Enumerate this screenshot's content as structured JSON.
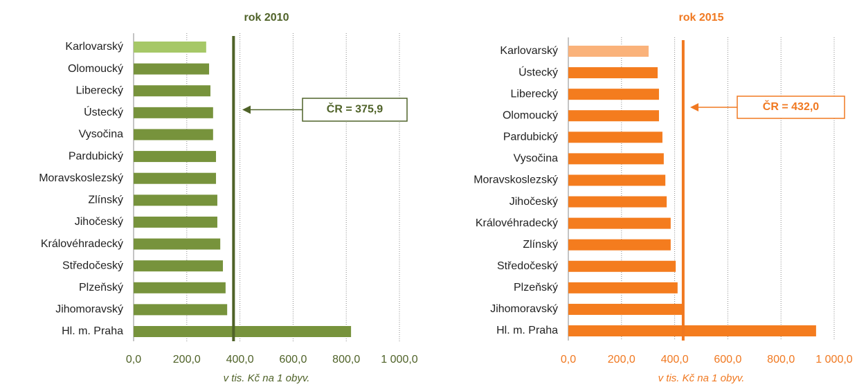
{
  "chart_data": [
    {
      "type": "bar",
      "orientation": "horizontal",
      "title": "rok 2010",
      "text_color": "#4f6228",
      "categories": [
        "Karlovarský",
        "Olomoucký",
        "Liberecký",
        "Ústecký",
        "Vysočina",
        "Pardubický",
        "Moravskoslezský",
        "Zlínský",
        "Jihočeský",
        "Královéhradecký",
        "Středočeský",
        "Plzeňský",
        "Jihomoravský",
        "Hl. m. Praha"
      ],
      "values": [
        273,
        284,
        289,
        299,
        299,
        310,
        310,
        315,
        315,
        326,
        336,
        346,
        352,
        818
      ],
      "colors": [
        "#a6c867",
        "#77933c",
        "#77933c",
        "#77933c",
        "#77933c",
        "#77933c",
        "#77933c",
        "#77933c",
        "#77933c",
        "#77933c",
        "#77933c",
        "#77933c",
        "#77933c",
        "#77933c"
      ],
      "xlim": [
        0,
        1000
      ],
      "xticks": [
        {
          "value": 0,
          "label": "0,0"
        },
        {
          "value": 200,
          "label": "200,0"
        },
        {
          "value": 400,
          "label": "400,0"
        },
        {
          "value": 600,
          "label": "600,0"
        },
        {
          "value": 800,
          "label": "800,0"
        },
        {
          "value": 1000,
          "label": "1 000,0"
        }
      ],
      "x_label": "v tis. Kč na 1 obyv.",
      "grid": true,
      "reference": {
        "value": 375.9,
        "label": "ČR = 375,9",
        "color": "#4f6228"
      }
    },
    {
      "type": "bar",
      "orientation": "horizontal",
      "title": "rok 2015",
      "text_color": "#f07820",
      "categories": [
        "Karlovarský",
        "Ústecký",
        "Liberecký",
        "Olomoucký",
        "Pardubický",
        "Vysočina",
        "Moravskoslezský",
        "Jihočeský",
        "Královéhradecký",
        "Zlínský",
        "Středočeský",
        "Plzeňský",
        "Jihomoravský",
        "Hl. m. Praha"
      ],
      "values": [
        302,
        336,
        341,
        341,
        354,
        359,
        365,
        370,
        385,
        385,
        404,
        411,
        435,
        932
      ],
      "colors": [
        "#fab27a",
        "#f47c1e",
        "#f47c1e",
        "#f47c1e",
        "#f47c1e",
        "#f47c1e",
        "#f47c1e",
        "#f47c1e",
        "#f47c1e",
        "#f47c1e",
        "#f47c1e",
        "#f47c1e",
        "#f47c1e",
        "#f47c1e"
      ],
      "xlim": [
        0,
        1000
      ],
      "xticks": [
        {
          "value": 0,
          "label": "0,0"
        },
        {
          "value": 200,
          "label": "200,0"
        },
        {
          "value": 400,
          "label": "400,0"
        },
        {
          "value": 600,
          "label": "600,0"
        },
        {
          "value": 800,
          "label": "800,0"
        },
        {
          "value": 1000,
          "label": "1 000,0"
        }
      ],
      "x_label": "v tis. Kč na 1 obyv.",
      "grid": true,
      "reference": {
        "value": 432.0,
        "label": "ČR = 432,0",
        "color": "#f07820"
      }
    }
  ]
}
